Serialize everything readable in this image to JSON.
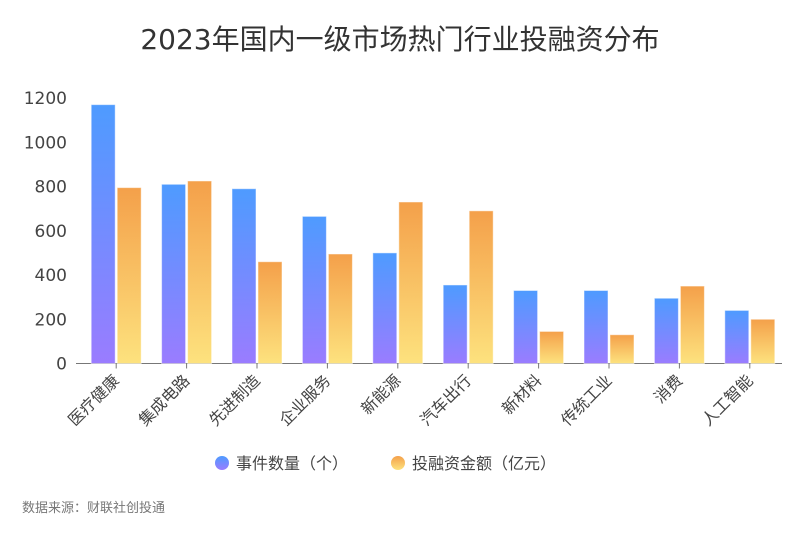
{
  "chart_data": {
    "type": "bar",
    "title": "2023年国内一级市场热门行业投融资分布",
    "categories": [
      "医疗健康",
      "集成电路",
      "先进制造",
      "企业服务",
      "新能源",
      "汽车出行",
      "新材料",
      "传统工业",
      "消费",
      "人工智能"
    ],
    "series": [
      {
        "name": "事件数量（个）",
        "values": [
          1170,
          810,
          790,
          665,
          500,
          355,
          330,
          330,
          295,
          240
        ],
        "color": "#4e9bff",
        "color_bottom": "#9a7cff"
      },
      {
        "name": "投融资金额（亿元）",
        "values": [
          795,
          825,
          460,
          495,
          730,
          690,
          145,
          130,
          350,
          200
        ],
        "color": "#f4a04a",
        "color_bottom": "#fde27e"
      }
    ],
    "yticks": [
      0,
      200,
      400,
      600,
      800,
      1000,
      1200
    ],
    "ylim": [
      0,
      1200
    ],
    "grid": false,
    "legend": "bottom"
  },
  "source": "数据来源：财联社创投通"
}
